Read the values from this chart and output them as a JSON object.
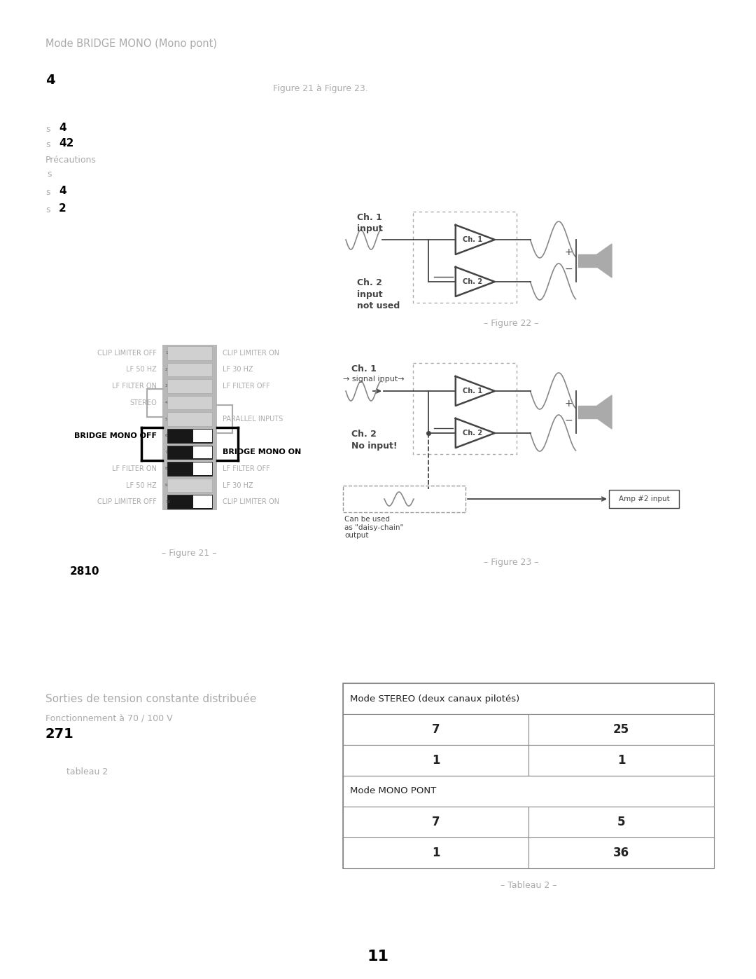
{
  "title": "Mode BRIDGE MONO (Mono pont)",
  "page_number": "11",
  "bg_color": "#ffffff",
  "text_color": "#000000",
  "gray_color": "#aaaaaa",
  "mid_gray": "#888888",
  "dark_gray": "#444444",
  "fig21_caption": "– Figure 21 –",
  "fig22_caption": "– Figure 22 –",
  "fig23_caption": "– Figure 23 –",
  "tableau2_caption": "– Tableau 2 –",
  "sorties_title": "Sorties de tension constante distribuée",
  "fonctionnement_text": "Fonctionnement à 70 / 100 V",
  "tableau_ref": "271",
  "tableau2_label": "tableau 2",
  "table_data": {
    "header": "Mode STEREO (deux canaux pilotés)",
    "stereo_row1": [
      "7",
      "25"
    ],
    "stereo_row2": [
      "1",
      "1"
    ],
    "mono_header": "Mode MONO PONT",
    "mono_row1": [
      "7",
      "5"
    ],
    "mono_row2": [
      "1",
      "36"
    ]
  }
}
